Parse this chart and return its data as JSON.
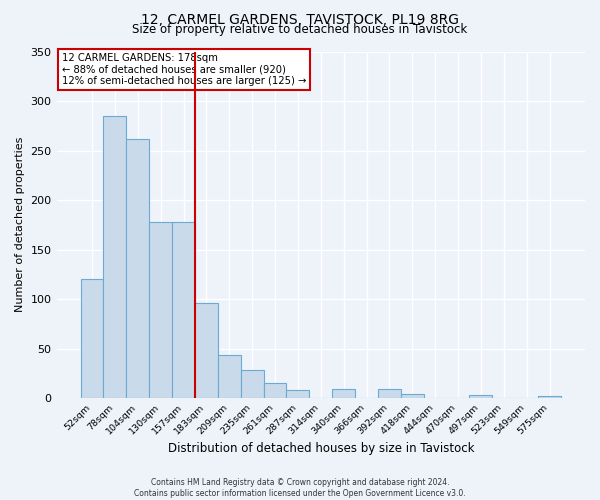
{
  "title": "12, CARMEL GARDENS, TAVISTOCK, PL19 8RG",
  "subtitle": "Size of property relative to detached houses in Tavistock",
  "xlabel": "Distribution of detached houses by size in Tavistock",
  "ylabel": "Number of detached properties",
  "bin_labels": [
    "52sqm",
    "78sqm",
    "104sqm",
    "130sqm",
    "157sqm",
    "183sqm",
    "209sqm",
    "235sqm",
    "261sqm",
    "287sqm",
    "314sqm",
    "340sqm",
    "366sqm",
    "392sqm",
    "418sqm",
    "444sqm",
    "470sqm",
    "497sqm",
    "523sqm",
    "549sqm",
    "575sqm"
  ],
  "bar_heights": [
    120,
    285,
    262,
    178,
    178,
    96,
    44,
    28,
    15,
    8,
    0,
    9,
    0,
    9,
    4,
    0,
    0,
    3,
    0,
    0,
    2
  ],
  "bar_color": "#c9daea",
  "bar_edge_color": "#6aaad4",
  "vline_index": 5,
  "marker_label_line1": "12 CARMEL GARDENS: 178sqm",
  "marker_label_line2": "← 88% of detached houses are smaller (920)",
  "marker_label_line3": "12% of semi-detached houses are larger (125) →",
  "vline_color": "#cc0000",
  "annotation_box_edge_color": "#cc0000",
  "ylim": [
    0,
    350
  ],
  "yticks": [
    0,
    50,
    100,
    150,
    200,
    250,
    300,
    350
  ],
  "footer_line1": "Contains HM Land Registry data © Crown copyright and database right 2024.",
  "footer_line2": "Contains public sector information licensed under the Open Government Licence v3.0.",
  "background_color": "#eef2f9",
  "grid_color": "white"
}
